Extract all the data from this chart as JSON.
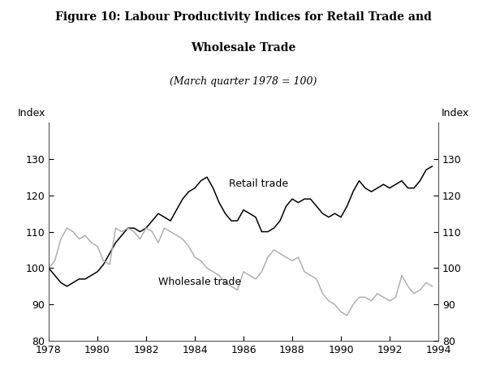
{
  "title_line1": "Figure 10: Labour Productivity Indices for Retail Trade and",
  "title_line2": "Wholesale Trade",
  "subtitle": "(March quarter 1978 = 100)",
  "ylabel_left": "Index",
  "ylabel_right": "Index",
  "ylim": [
    80,
    140
  ],
  "yticks": [
    80,
    90,
    100,
    110,
    120,
    130
  ],
  "xlim": [
    1978,
    1994
  ],
  "xticks": [
    1978,
    1980,
    1982,
    1984,
    1986,
    1988,
    1990,
    1992,
    1994
  ],
  "retail_label": "Retail trade",
  "wholesale_label": "Wholesale trade",
  "retail_color": "#000000",
  "wholesale_color": "#b0b0b0",
  "retail_x": [
    1978.0,
    1978.25,
    1978.5,
    1978.75,
    1979.0,
    1979.25,
    1979.5,
    1979.75,
    1980.0,
    1980.25,
    1980.5,
    1980.75,
    1981.0,
    1981.25,
    1981.5,
    1981.75,
    1982.0,
    1982.25,
    1982.5,
    1982.75,
    1983.0,
    1983.25,
    1983.5,
    1983.75,
    1984.0,
    1984.25,
    1984.5,
    1984.75,
    1985.0,
    1985.25,
    1985.5,
    1985.75,
    1986.0,
    1986.25,
    1986.5,
    1986.75,
    1987.0,
    1987.25,
    1987.5,
    1987.75,
    1988.0,
    1988.25,
    1988.5,
    1988.75,
    1989.0,
    1989.25,
    1989.5,
    1989.75,
    1990.0,
    1990.25,
    1990.5,
    1990.75,
    1991.0,
    1991.25,
    1991.5,
    1991.75,
    1992.0,
    1992.25,
    1992.5,
    1992.75,
    1993.0,
    1993.25,
    1993.5,
    1993.75
  ],
  "retail_y": [
    100,
    98,
    96,
    95,
    96,
    97,
    97,
    98,
    99,
    101,
    104,
    107,
    109,
    111,
    111,
    110,
    111,
    113,
    115,
    114,
    113,
    116,
    119,
    121,
    122,
    124,
    125,
    122,
    118,
    115,
    113,
    113,
    116,
    115,
    114,
    110,
    110,
    111,
    113,
    117,
    119,
    118,
    119,
    119,
    117,
    115,
    114,
    115,
    114,
    117,
    121,
    124,
    122,
    121,
    122,
    123,
    122,
    123,
    124,
    122,
    122,
    124,
    127,
    128
  ],
  "wholesale_x": [
    1978.0,
    1978.25,
    1978.5,
    1978.75,
    1979.0,
    1979.25,
    1979.5,
    1979.75,
    1980.0,
    1980.25,
    1980.5,
    1980.75,
    1981.0,
    1981.25,
    1981.5,
    1981.75,
    1982.0,
    1982.25,
    1982.5,
    1982.75,
    1983.0,
    1983.25,
    1983.5,
    1983.75,
    1984.0,
    1984.25,
    1984.5,
    1984.75,
    1985.0,
    1985.25,
    1985.5,
    1985.75,
    1986.0,
    1986.25,
    1986.5,
    1986.75,
    1987.0,
    1987.25,
    1987.5,
    1987.75,
    1988.0,
    1988.25,
    1988.5,
    1988.75,
    1989.0,
    1989.25,
    1989.5,
    1989.75,
    1990.0,
    1990.25,
    1990.5,
    1990.75,
    1991.0,
    1991.25,
    1991.5,
    1991.75,
    1992.0,
    1992.25,
    1992.5,
    1992.75,
    1993.0,
    1993.25,
    1993.5,
    1993.75
  ],
  "wholesale_y": [
    100,
    102,
    108,
    111,
    110,
    108,
    109,
    107,
    106,
    102,
    101,
    111,
    110,
    111,
    110,
    108,
    111,
    110,
    107,
    111,
    110,
    109,
    108,
    106,
    103,
    102,
    100,
    99,
    98,
    96,
    95,
    94,
    99,
    98,
    97,
    99,
    103,
    105,
    104,
    103,
    102,
    103,
    99,
    98,
    97,
    93,
    91,
    90,
    88,
    87,
    90,
    92,
    92,
    91,
    93,
    92,
    91,
    92,
    98,
    95,
    93,
    94,
    96,
    95
  ]
}
